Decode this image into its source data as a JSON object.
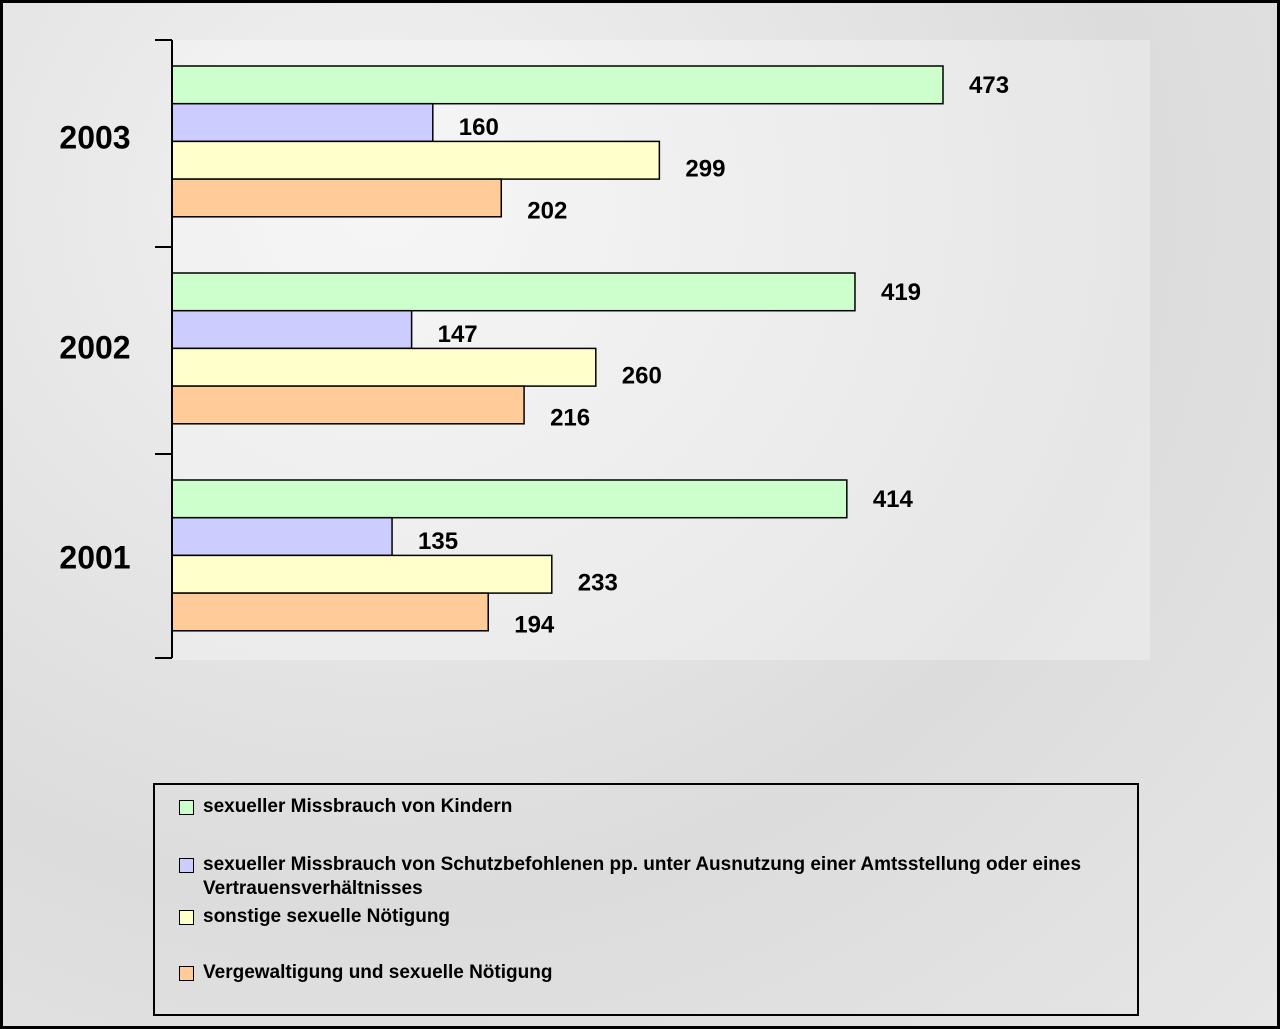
{
  "chart_data": {
    "type": "barh",
    "categories": [
      "2003",
      "2002",
      "2001"
    ],
    "series": [
      {
        "name": "sexueller Missbrauch von Kindern",
        "color": "#ccffcc",
        "values": [
          473,
          419,
          414
        ]
      },
      {
        "name": "sexueller Missbrauch von Schutzbefohlenen pp. unter Ausnutzung einer Amtsstellung oder eines Vertrauensverhältnisses",
        "color": "#ccccff",
        "values": [
          160,
          147,
          135
        ]
      },
      {
        "name": "sonstige sexuelle Nötigung",
        "color": "#ffffcc",
        "values": [
          299,
          260,
          233
        ]
      },
      {
        "name": "Vergewaltigung und sexuelle Nötigung",
        "color": "#ffcc99",
        "values": [
          202,
          216,
          194
        ]
      }
    ]
  }
}
